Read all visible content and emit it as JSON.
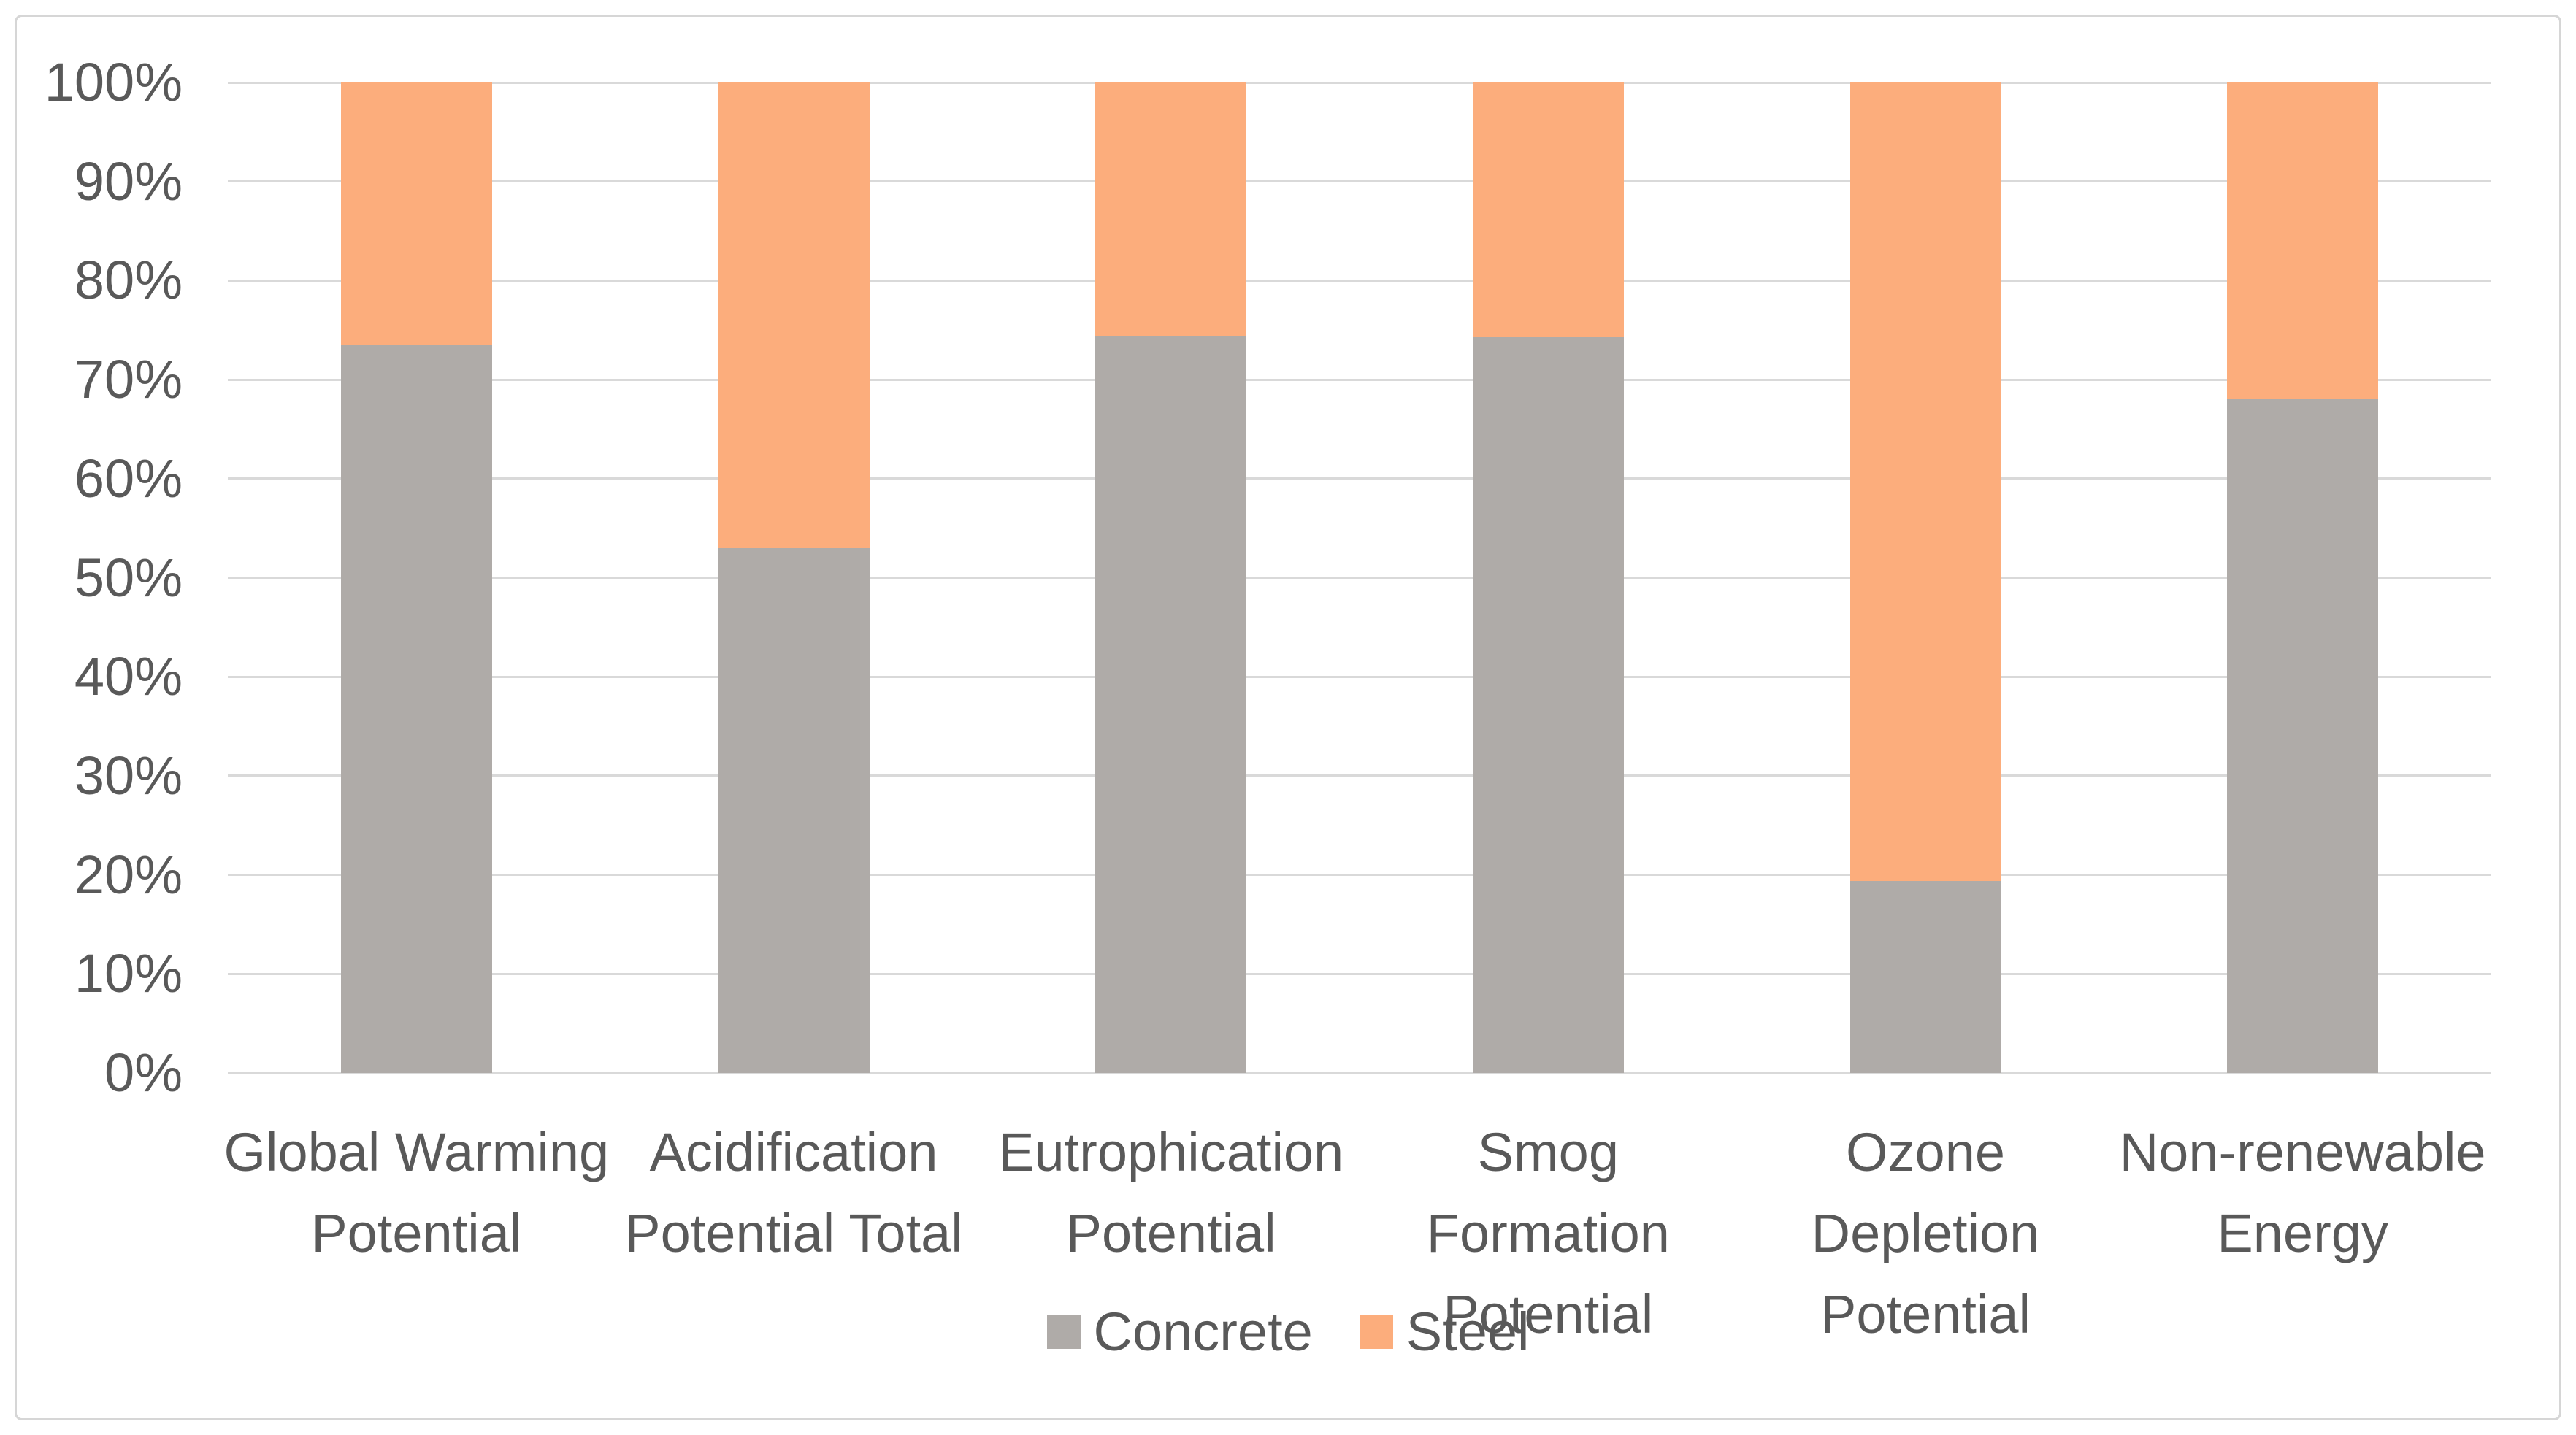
{
  "chart_data": {
    "type": "bar",
    "stacked": true,
    "percent_stacked": true,
    "title": "",
    "xlabel": "",
    "ylabel": "",
    "categories": [
      "Global Warming Potential",
      "Acidification Potential Total",
      "Eutrophication Potential",
      "Smog Formation Potential",
      "Ozone Depletion Potential",
      "Non-renewable Energy"
    ],
    "series": [
      {
        "name": "Concrete",
        "color": "#afaba8",
        "values": [
          73.5,
          53.0,
          74.4,
          74.3,
          19.4,
          68.0
        ]
      },
      {
        "name": "Steel",
        "color": "#fcad7c",
        "values": [
          26.5,
          47.0,
          25.6,
          25.7,
          80.6,
          32.0
        ]
      }
    ],
    "y_ticks": [
      "100%",
      "90%",
      "80%",
      "70%",
      "60%",
      "50%",
      "40%",
      "30%",
      "20%",
      "10%",
      "0%"
    ],
    "ylim": [
      0,
      100
    ],
    "grid": true,
    "gridline_color": "#d9d9d9",
    "axis_text_color": "#595959",
    "legend_position": "bottom"
  }
}
